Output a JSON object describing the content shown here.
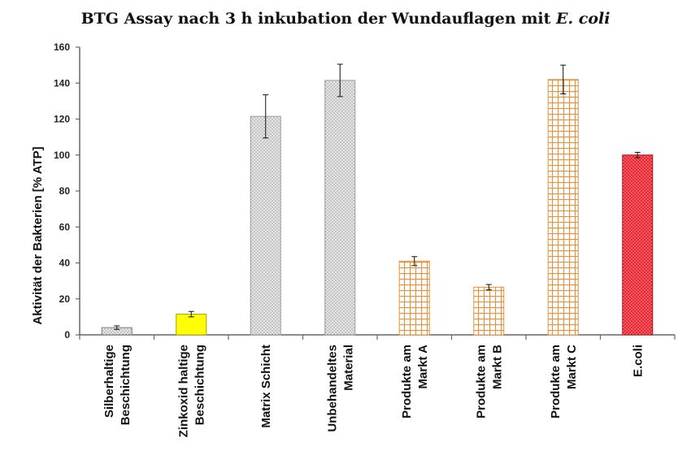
{
  "chart_data": {
    "type": "bar",
    "title": "BTG Assay nach 3 h inkubation der Wundauflagen mit ",
    "title_italic": "E. coli",
    "ylabel": "Aktivität der Bakterien [% ATP]",
    "xlabel": "",
    "ylim": [
      0,
      160
    ],
    "yticks": [
      "0",
      "20",
      "40",
      "60",
      "80",
      "100",
      "120",
      "140",
      "160"
    ],
    "grid": false,
    "categories": [
      [
        "Silberhaltige",
        "Beschichtung"
      ],
      [
        "Zinkoxid haltige",
        "Beschichtung"
      ],
      [
        "Matrix Schicht"
      ],
      [
        "Unbehandeltes",
        "Material"
      ],
      [
        "Produkte am",
        "Markt A"
      ],
      [
        "Produkte am",
        "Markt B"
      ],
      [
        "Produkte am",
        "Markt C"
      ],
      [
        "E.coli"
      ]
    ],
    "values": [
      4,
      11.5,
      121.5,
      141.5,
      41,
      26.5,
      142,
      100
    ],
    "errors": [
      1,
      1.5,
      12,
      9,
      2.5,
      1.5,
      8,
      1.5
    ],
    "colors": {
      "fill": [
        "#d6d6d6",
        "#ffff00",
        "#dedede",
        "#d4d4d4",
        "#ffffff",
        "#ffffff",
        "#ffffff",
        "#e8262f"
      ],
      "stroke": [
        "#7a7a7a",
        "#b0a000",
        "#9a9a9a",
        "#9a9a9a",
        "#e8913a",
        "#e8913a",
        "#e8913a",
        "#b01020"
      ],
      "pattern": [
        "dots",
        "none",
        "dots",
        "dots",
        "grid",
        "grid",
        "grid",
        "dots"
      ]
    }
  }
}
